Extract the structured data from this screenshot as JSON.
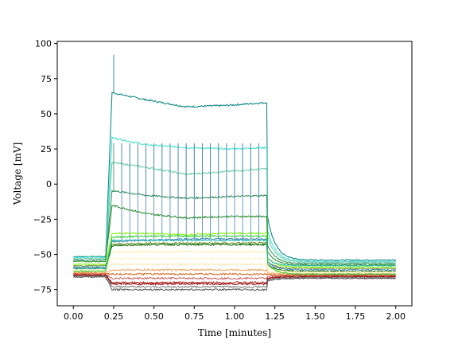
{
  "chart_data": {
    "type": "line",
    "title": "",
    "xlabel": "Time [minutes]",
    "ylabel": "Voltage [mV]",
    "xlim": [
      -0.1,
      2.1
    ],
    "ylim": [
      -86.5,
      101.5
    ],
    "xticks": [
      0.0,
      0.25,
      0.5,
      0.75,
      1.0,
      1.25,
      1.5,
      1.75,
      2.0
    ],
    "xtick_labels": [
      "0.00",
      "0.25",
      "0.50",
      "0.75",
      "1.00",
      "1.25",
      "1.50",
      "1.75",
      "2.00"
    ],
    "yticks": [
      -75,
      -50,
      -25,
      0,
      25,
      50,
      75,
      100
    ],
    "ytick_labels": [
      "−75",
      "−50",
      "−25",
      "0",
      "25",
      "50",
      "75",
      "100"
    ],
    "grid": false,
    "legend": false,
    "stimulus_window": [
      0.2,
      1.2
    ],
    "series": [
      {
        "color": "#008080",
        "pre": -51.5,
        "during": [
          66,
          60,
          55,
          56,
          58
        ],
        "post": -54.0,
        "spikes": [
          0.25
        ]
      },
      {
        "color": "#40e0d0",
        "pre": -52.0,
        "during": [
          34,
          28,
          26,
          25,
          26
        ],
        "post": -55.0,
        "spikes": []
      },
      {
        "color": "#66cdaa",
        "pre": -53.0,
        "during": [
          16,
          12,
          7,
          9,
          11
        ],
        "post": -55.5,
        "spikes": []
      },
      {
        "color": "#2e8b57",
        "pre": -54.0,
        "during": [
          -4,
          -8,
          -10,
          -9,
          -8
        ],
        "post": -56.5,
        "spikes": [
          0.25,
          0.3,
          0.35,
          0.4,
          0.45,
          0.5,
          0.55,
          0.6,
          0.65,
          0.7,
          0.75,
          0.8,
          0.85,
          0.9,
          0.95,
          1.0,
          1.05,
          1.1,
          1.15
        ]
      },
      {
        "color": "#228b22",
        "pre": -55.0,
        "during": [
          -14,
          -21,
          -24,
          -23,
          -23
        ],
        "post": -57.5,
        "spikes": []
      },
      {
        "color": "#7cfc00",
        "pre": -57.0,
        "during": [
          -35,
          -35,
          -36,
          -35,
          -35
        ],
        "post": -59.0,
        "spikes": []
      },
      {
        "color": "#6b8e23",
        "pre": -58.0,
        "during": [
          -43,
          -42,
          -42,
          -42,
          -42
        ],
        "post": -60.0,
        "spikes": []
      },
      {
        "color": "#4682b4",
        "pre": -59.0,
        "during": [
          -41,
          -40,
          -39,
          -39,
          -39
        ],
        "post": -61.0,
        "spikes": [
          0.3,
          0.35,
          0.4,
          0.45,
          0.5,
          0.55,
          0.6,
          0.65,
          0.7,
          0.75,
          0.8,
          0.85,
          0.9,
          0.95,
          1.0,
          1.05,
          1.1,
          1.15
        ]
      },
      {
        "color": "#006400",
        "pre": -60.0,
        "during": [
          -44,
          -43,
          -43,
          -43,
          -43
        ],
        "post": -62.0,
        "spikes": []
      },
      {
        "color": "#ffefb0",
        "pre": -61.0,
        "during": [
          -48,
          -48,
          -48,
          -48,
          -48
        ],
        "post": -62.5,
        "spikes": []
      },
      {
        "color": "#fff5cc",
        "pre": -61.5,
        "during": [
          -53,
          -53,
          -53,
          -53,
          -53
        ],
        "post": -63.0,
        "spikes": []
      },
      {
        "color": "#ffe4b5",
        "pre": -62.0,
        "during": [
          -57,
          -57,
          -57,
          -57,
          -57
        ],
        "post": -63.5,
        "spikes": []
      },
      {
        "color": "#f4a460",
        "pre": -63.0,
        "during": [
          -61,
          -61,
          -61,
          -61,
          -61
        ],
        "post": -64.0,
        "spikes": []
      },
      {
        "color": "#d2691e",
        "pre": -63.5,
        "during": [
          -64,
          -64,
          -64,
          -64,
          -64
        ],
        "post": -64.5,
        "spikes": []
      },
      {
        "color": "#cd5c5c",
        "pre": -64.0,
        "during": [
          -67,
          -67,
          -67,
          -67,
          -67
        ],
        "post": -65.0,
        "spikes": []
      },
      {
        "color": "#b22222",
        "pre": -64.5,
        "during": [
          -70,
          -70,
          -70,
          -70,
          -70
        ],
        "post": -65.5,
        "spikes": []
      },
      {
        "color": "#8b0000",
        "pre": -65.0,
        "during": [
          -71,
          -71,
          -71,
          -71,
          -71
        ],
        "post": -66.0,
        "spikes": []
      },
      {
        "color": "#7f7f7f",
        "pre": -65.5,
        "during": [
          -73,
          -73,
          -73,
          -73,
          -73
        ],
        "post": -66.5,
        "spikes": []
      },
      {
        "color": "#555555",
        "pre": -66.0,
        "during": [
          -75,
          -75,
          -75,
          -75,
          -75
        ],
        "post": -67.0,
        "spikes": []
      },
      {
        "color": "#32cd32",
        "pre": -62.0,
        "during": [
          -38,
          -37,
          -37,
          -37,
          -37
        ],
        "post": -64.0,
        "spikes": []
      },
      {
        "color": "#20b2aa",
        "pre": -60.0,
        "during": [
          -40,
          -40,
          -40,
          -40,
          -40
        ],
        "post": -58.0,
        "spikes": []
      }
    ]
  }
}
